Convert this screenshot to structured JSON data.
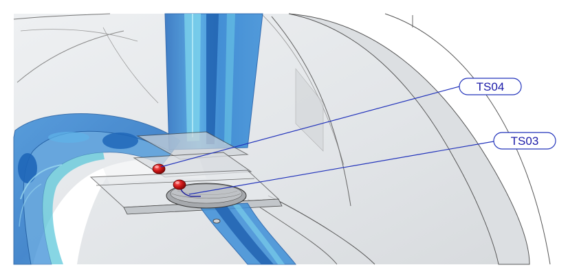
{
  "figure": {
    "callouts": [
      {
        "id": "ts04",
        "label": "TS04"
      },
      {
        "id": "ts03",
        "label": "TS03"
      }
    ]
  },
  "colors": {
    "housing_fill": "#e6e8ea",
    "housing_edge": "#6a6a6a",
    "pipe_blue": "#2f7fd0",
    "pipe_cyan": "#46c6d6",
    "sensor_red": "#d01818",
    "leader_line": "#2233bb",
    "label_text": "#1a1aa8"
  }
}
